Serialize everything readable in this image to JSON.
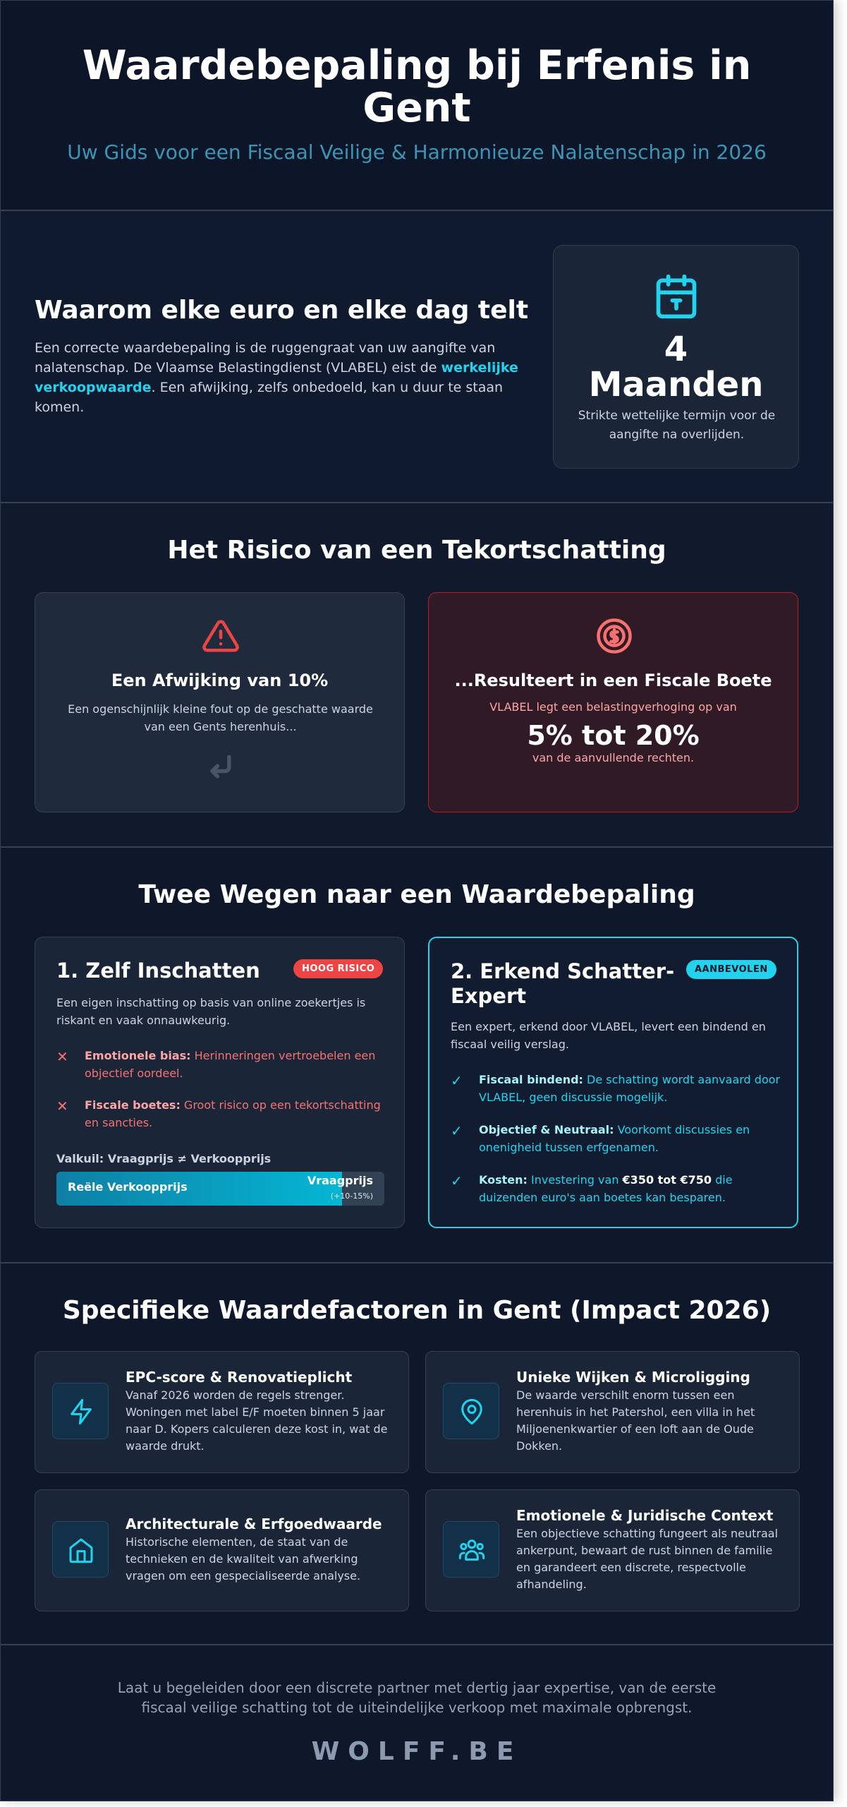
{
  "header": {
    "title": "Waardebepaling bij Erfenis in Gent",
    "subtitle": "Uw Gids voor een Fiscaal Veilige & Harmonieuze Nalatenschap in 2026"
  },
  "why": {
    "title": "Waarom elke euro en elke dag telt",
    "text_before": "Een correcte waardebepaling is de ruggengraat van uw aangifte van nalatenschap. De Vlaamse Belastingdienst (VLABEL) eist de ",
    "highlight": "werkelijke verkoopwaarde",
    "text_after": ". Een afwijking, zelfs onbedoeld, kan u duur te staan komen.",
    "term_number": "4",
    "term_unit": "Maanden",
    "term_note": "Strikte wettelijke termijn voor de aangifte na overlijden.",
    "term_icon": "calendar-icon"
  },
  "risk": {
    "title": "Het Risico van een Tekortschatting",
    "left_title": "Een Afwijking van 10%",
    "left_text": "Een ogenschijnlijk kleine fout op de geschatte waarde van een Gents herenhuis...",
    "left_icon": "warning-icon",
    "right_title": "...Resulteert in een Fiscale Boete",
    "right_text": "VLABEL legt een belastingverhoging op van",
    "right_big": "5% tot 20%",
    "right_text2": "van de aanvullende rechten.",
    "right_icon": "money-icon",
    "accent_red": "#ef4444"
  },
  "ways": {
    "title": "Twee Wegen naar een Waardebepaling",
    "left": {
      "title": "1. Zelf Inschatten",
      "badge": "HOOG RISICO",
      "desc": "Een eigen inschatting op basis van online zoekertjes is riskant en vaak onnauwkeurig.",
      "items": [
        {
          "bold": "Emotionele bias:",
          "text": " Herinneringen vertroebelen een objectief oordeel."
        },
        {
          "bold": "Fiscale boetes:",
          "text": " Groot risico op een tekortschatting en sancties."
        }
      ],
      "pitfall": "Valkuil: Vraagprijs ≠ Verkoopprijs",
      "bar_real": "Reële Verkoopprijs",
      "bar_ask": "Vraagprijs",
      "bar_pct": "(+10-15%)",
      "bar_fill": 0.87
    },
    "right": {
      "title_line1": "2. Erkend Schatter-",
      "title_line2": "Expert",
      "badge": "AANBEVOLEN",
      "desc": "Een expert, erkend door VLABEL, levert een bindend en fiscaal veilig verslag.",
      "items": [
        {
          "bold": "Fiscaal bindend:",
          "text": " De schatting wordt aanvaard door VLABEL, geen discussie mogelijk."
        },
        {
          "bold": "Objectief & Neutraal:",
          "text": " Voorkomt discussies en onenigheid tussen erfgenamen."
        }
      ],
      "cost_bold": "Kosten:",
      "cost_text1": " Investering van ",
      "cost_amount": "€350 tot €750",
      "cost_text2": " die duizenden euro's aan boetes kan besparen.",
      "accent_cyan": "#22d3ee"
    }
  },
  "factors": {
    "title": "Specifieke Waardefactoren in Gent (Impact 2026)",
    "items": [
      {
        "icon": "lightning-icon",
        "title": "EPC-score & Renovatieplicht",
        "text": "Vanaf 2026 worden de regels strenger. Woningen met label E/F moeten binnen 5 jaar naar D. Kopers calculeren deze kost in, wat de waarde drukt."
      },
      {
        "icon": "location-pin-icon",
        "title": "Unieke Wijken & Microligging",
        "text": "De waarde verschilt enorm tussen een herenhuis in het Patershol, een villa in het Miljoenenkwartier of een loft aan de Oude Dokken."
      },
      {
        "icon": "house-icon",
        "title": "Architecturale & Erfgoedwaarde",
        "text": "Historische elementen, de staat van de technieken en de kwaliteit van afwerking vragen om een gespecialiseerde analyse."
      },
      {
        "icon": "people-icon",
        "title": "Emotionele & Juridische Context",
        "text": "Een objectieve schatting fungeert als neutraal ankerpunt, bewaart de rust binnen de familie en garandeert een discrete, respectvolle afhandeling."
      }
    ]
  },
  "footer": {
    "text": "Laat u begeleiden door een discrete partner met dertig jaar expertise, van de eerste fiscaal veilige schatting tot de uiteindelijke verkoop met maximale opbrengst.",
    "brand": "WOLFF.BE"
  }
}
